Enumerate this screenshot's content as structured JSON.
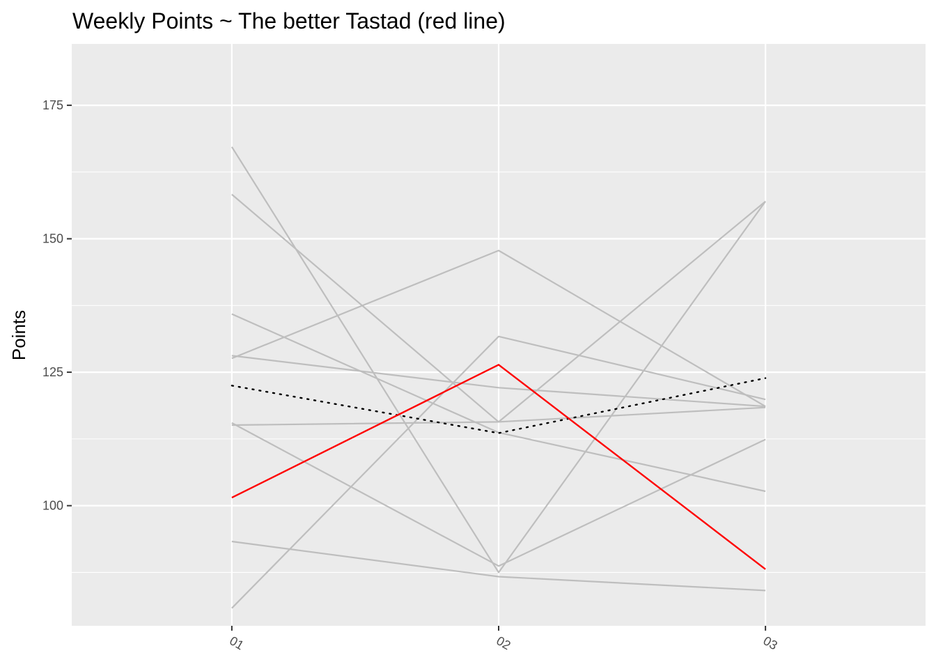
{
  "chart_data": {
    "type": "line",
    "title": "Weekly Points ~ The better Tastad (red line)",
    "xlabel": "",
    "ylabel": "Points",
    "categories": [
      "01",
      "02",
      "03"
    ],
    "ylim": [
      77.5,
      186.5
    ],
    "yticks": [
      100,
      125,
      150,
      175
    ],
    "grid": true,
    "legend": "none",
    "series": [
      {
        "values": [
          167.2,
          87.5,
          157.0
        ],
        "color": "#bebebe"
      },
      {
        "values": [
          158.3,
          115.7,
          157.0
        ],
        "color": "#bebebe"
      },
      {
        "values": [
          127.6,
          147.8,
          118.6
        ],
        "color": "#bebebe"
      },
      {
        "values": [
          135.9,
          113.7,
          102.7
        ],
        "color": "#bebebe"
      },
      {
        "values": [
          128.1,
          122.1,
          118.6
        ],
        "color": "#bebebe"
      },
      {
        "values": [
          115.1,
          115.7,
          118.4
        ],
        "color": "#bebebe"
      },
      {
        "values": [
          115.5,
          88.7,
          112.4
        ],
        "color": "#bebebe"
      },
      {
        "values": [
          93.3,
          86.7,
          84.1
        ],
        "color": "#bebebe"
      },
      {
        "values": [
          80.8,
          131.7,
          119.9
        ],
        "color": "#bebebe"
      },
      {
        "values": [
          122.5,
          113.6,
          123.9
        ],
        "color": "#000000",
        "dotted": true
      },
      {
        "values": [
          101.5,
          126.4,
          88.1
        ],
        "color": "#ff0000"
      }
    ]
  },
  "colors": {
    "panel": "#ebebeb",
    "grid": "#ffffff",
    "highlight": "#ff0000",
    "others": "#bebebe",
    "average": "#000000"
  }
}
